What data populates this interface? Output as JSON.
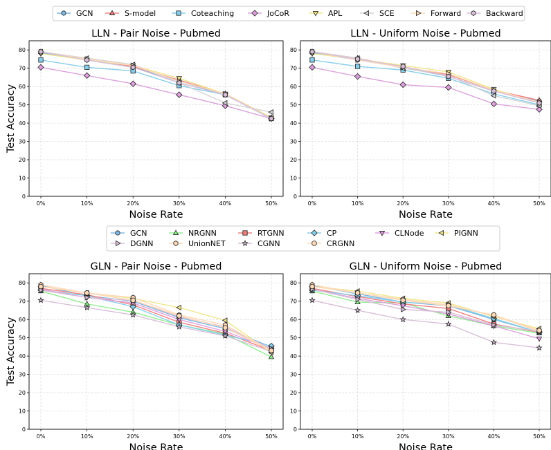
{
  "figure": {
    "ylabel": "Test Accuracy",
    "xlabel": "Noise Rate"
  },
  "legends": {
    "lln": [
      {
        "name": "GCN",
        "color": "#7fb8e0",
        "marker": "circle"
      },
      {
        "name": "S-model",
        "color": "#f08080",
        "marker": "triangle-up"
      },
      {
        "name": "Coteaching",
        "color": "#87ceeb",
        "marker": "square"
      },
      {
        "name": "JoCoR",
        "color": "#dda0dd",
        "marker": "diamond"
      },
      {
        "name": "APL",
        "color": "#f0e68c",
        "marker": "triangle-down"
      },
      {
        "name": "SCE",
        "color": "#d3d3d3",
        "marker": "triangle-left"
      },
      {
        "name": "Forward",
        "color": "#ffdab9",
        "marker": "triangle-right"
      },
      {
        "name": "Backward",
        "color": "#d8bfd8",
        "marker": "hexagon"
      }
    ],
    "gln": [
      {
        "name": "GCN",
        "color": "#7fb8e0",
        "marker": "circle"
      },
      {
        "name": "NRGNN",
        "color": "#90ee90",
        "marker": "triangle-up"
      },
      {
        "name": "RTGNN",
        "color": "#f08080",
        "marker": "square"
      },
      {
        "name": "CP",
        "color": "#87ceeb",
        "marker": "diamond"
      },
      {
        "name": "CLNode",
        "color": "#dda0dd",
        "marker": "triangle-down"
      },
      {
        "name": "PIGNN",
        "color": "#f0e68c",
        "marker": "triangle-left"
      },
      {
        "name": "DGNN",
        "color": "#d8bfd8",
        "marker": "triangle-right"
      },
      {
        "name": "UnionNET",
        "color": "#ffdab9",
        "marker": "hexagon"
      },
      {
        "name": "CGNN",
        "color": "#d8bfd8",
        "marker": "star"
      },
      {
        "name": "CRGNN",
        "color": "#ffdab9",
        "marker": "octagon"
      }
    ]
  },
  "chart_data": [
    {
      "type": "line",
      "title": "LLN - Pair Noise - Pubmed",
      "x": [
        "0%",
        "10%",
        "20%",
        "30%",
        "40%",
        "50%"
      ],
      "ylim": [
        0,
        85
      ],
      "yticks": [
        0,
        10,
        20,
        30,
        40,
        50,
        60,
        70,
        80
      ],
      "xlabel": "Noise Rate",
      "ylabel": "Test Accuracy",
      "grid": true,
      "series": [
        {
          "name": "GCN",
          "values": [
            78.5,
            74.5,
            70.5,
            63,
            55.5,
            42.5
          ]
        },
        {
          "name": "S-model",
          "values": [
            79,
            75,
            71,
            63.5,
            56,
            43
          ]
        },
        {
          "name": "Coteaching",
          "values": [
            74.5,
            70.5,
            68.5,
            60.5,
            55.5,
            42.5
          ]
        },
        {
          "name": "JoCoR",
          "values": [
            70.5,
            66,
            61.5,
            55.5,
            49.5,
            42.5
          ]
        },
        {
          "name": "APL",
          "values": [
            78,
            74.5,
            71.5,
            64.5,
            56,
            43
          ]
        },
        {
          "name": "SCE",
          "values": [
            79,
            75.5,
            72,
            62,
            51,
            46
          ]
        },
        {
          "name": "Forward",
          "values": [
            79,
            75,
            71.5,
            63,
            56,
            42.5
          ]
        },
        {
          "name": "Backward",
          "values": [
            79,
            74.5,
            70.5,
            62,
            55.5,
            42.5
          ]
        }
      ]
    },
    {
      "type": "line",
      "title": "LLN - Uniform Noise - Pubmed",
      "x": [
        "0%",
        "10%",
        "20%",
        "30%",
        "40%",
        "50%"
      ],
      "ylim": [
        0,
        85
      ],
      "yticks": [
        0,
        10,
        20,
        30,
        40,
        50,
        60,
        70,
        80
      ],
      "xlabel": "Noise Rate",
      "ylabel": "",
      "grid": true,
      "series": [
        {
          "name": "GCN",
          "values": [
            78.5,
            74.5,
            70.5,
            65.5,
            57.5,
            52
          ]
        },
        {
          "name": "S-model",
          "values": [
            79,
            75.5,
            70.5,
            66.5,
            58,
            52.5
          ]
        },
        {
          "name": "Coteaching",
          "values": [
            74.5,
            71,
            69,
            64.5,
            56,
            50
          ]
        },
        {
          "name": "JoCoR",
          "values": [
            70.5,
            65.5,
            61,
            59.5,
            50.5,
            47.5
          ]
        },
        {
          "name": "APL",
          "values": [
            78,
            75,
            71.5,
            68,
            58.5,
            51
          ]
        },
        {
          "name": "SCE",
          "values": [
            79,
            75.5,
            70,
            66,
            55,
            49.5
          ]
        },
        {
          "name": "Forward",
          "values": [
            79,
            74.5,
            70.5,
            67,
            58,
            51.5
          ]
        },
        {
          "name": "Backward",
          "values": [
            79,
            75,
            71,
            65.5,
            57.5,
            51
          ]
        }
      ]
    },
    {
      "type": "line",
      "title": "GLN - Pair Noise - Pubmed",
      "x": [
        "0%",
        "10%",
        "20%",
        "30%",
        "40%",
        "50%"
      ],
      "ylim": [
        0,
        85
      ],
      "yticks": [
        0,
        10,
        20,
        30,
        40,
        50,
        60,
        70,
        80
      ],
      "xlabel": "Noise Rate",
      "ylabel": "Test Accuracy",
      "grid": true,
      "series": [
        {
          "name": "GCN",
          "values": [
            78.5,
            73,
            70,
            61,
            55,
            45
          ]
        },
        {
          "name": "NRGNN",
          "values": [
            75.5,
            68.5,
            64,
            57,
            52,
            39.5
          ]
        },
        {
          "name": "RTGNN",
          "values": [
            77,
            73.5,
            68,
            58.5,
            52.5,
            43
          ]
        },
        {
          "name": "CP",
          "values": [
            76,
            73,
            67,
            57,
            51.5,
            45.5
          ]
        },
        {
          "name": "CLNode",
          "values": [
            76.5,
            72,
            69,
            60,
            53.5,
            44
          ]
        },
        {
          "name": "PIGNN",
          "values": [
            78,
            74.5,
            71.5,
            66.5,
            59.5,
            42
          ]
        },
        {
          "name": "DGNN",
          "values": [
            76,
            72,
            70.5,
            61.5,
            56,
            44
          ]
        },
        {
          "name": "UnionNET",
          "values": [
            79,
            74.5,
            72,
            62.5,
            57,
            43
          ]
        },
        {
          "name": "CGNN",
          "values": [
            70.5,
            66.5,
            62.5,
            56,
            51,
            42.5
          ]
        },
        {
          "name": "CRGNN",
          "values": [
            78,
            74.5,
            70.5,
            62,
            55.5,
            43
          ]
        }
      ]
    },
    {
      "type": "line",
      "title": "GLN - Uniform Noise - Pubmed",
      "x": [
        "0%",
        "10%",
        "20%",
        "30%",
        "40%",
        "50%"
      ],
      "ylim": [
        0,
        85
      ],
      "yticks": [
        0,
        10,
        20,
        30,
        40,
        50,
        60,
        70,
        80
      ],
      "xlabel": "Noise Rate",
      "ylabel": "",
      "grid": true,
      "series": [
        {
          "name": "GCN",
          "values": [
            78.5,
            74,
            69.5,
            67.5,
            60,
            53
          ]
        },
        {
          "name": "NRGNN",
          "values": [
            75.5,
            69.5,
            69,
            62,
            56.5,
            52.5
          ]
        },
        {
          "name": "RTGNN",
          "values": [
            77,
            72.5,
            68.5,
            66,
            57.5,
            53
          ]
        },
        {
          "name": "CP",
          "values": [
            76,
            73,
            69.5,
            68,
            60.5,
            53
          ]
        },
        {
          "name": "CLNode",
          "values": [
            76.5,
            71.5,
            67.5,
            63,
            56.5,
            49.5
          ]
        },
        {
          "name": "PIGNN",
          "values": [
            78,
            75.5,
            71.5,
            69,
            61.5,
            55
          ]
        },
        {
          "name": "DGNN",
          "values": [
            76.5,
            71,
            65.5,
            64,
            57,
            53.5
          ]
        },
        {
          "name": "UnionNET",
          "values": [
            79,
            74.5,
            71,
            68,
            62,
            53.5
          ]
        },
        {
          "name": "CGNN",
          "values": [
            70.5,
            65,
            60,
            57.5,
            47.5,
            44.5
          ]
        },
        {
          "name": "CRGNN",
          "values": [
            78,
            74.5,
            70.5,
            67.5,
            62.5,
            54
          ]
        }
      ]
    }
  ]
}
